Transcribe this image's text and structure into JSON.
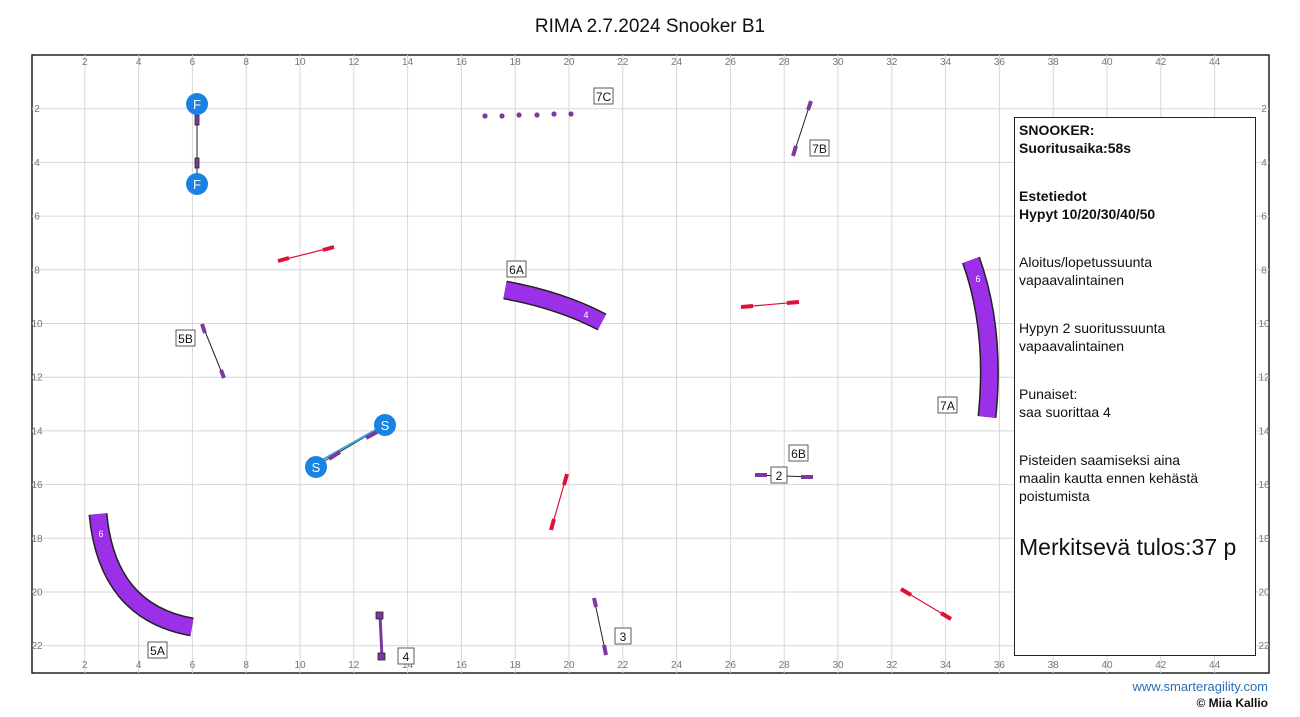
{
  "title": "RIMA 2.7.2024 Snooker B1",
  "footer": {
    "site": "www.smarteragility.com",
    "copyright": "© Miia Kallio"
  },
  "grid": {
    "x_ticks": [
      2,
      4,
      6,
      8,
      10,
      12,
      14,
      16,
      18,
      20,
      22,
      24,
      26,
      28,
      30,
      32,
      34,
      36,
      38,
      40,
      42,
      44
    ],
    "y_ticks": [
      2,
      4,
      6,
      8,
      10,
      12,
      14,
      16,
      18,
      20,
      22
    ]
  },
  "info": {
    "line1": "SNOOKER:",
    "line2": "Suoritusaika:58s",
    "line3": "Estetiedot",
    "line4": "Hypyt 10/20/30/40/50",
    "line5": "Aloitus/lopetussuunta",
    "line6": "vapaavalintainen",
    "line7": "Hypyn 2 suoritussuunta",
    "line8": "vapaavalintainen",
    "line9": "Punaiset:",
    "line10": "saa suorittaa 4",
    "line11": "Pisteiden saamiseksi aina",
    "line12": "maalin kautta ennen kehästä",
    "line13": "poistumista",
    "result": "Merkitsevä tulos:37 p"
  },
  "colors": {
    "tunnel": "#9b30e8",
    "red_jump": "#e0103a",
    "point": "#1a82e2",
    "jump": "#7b3aa0"
  },
  "labels": {
    "l7c": "7C",
    "l7b": "7B",
    "l6a": "6A",
    "l5b": "5B",
    "l7a": "7A",
    "l6b": "6B",
    "l2": "2",
    "l3": "3",
    "l4": "4",
    "l5a": "5A"
  },
  "tunnel_numbers": {
    "t6a": "4",
    "t7a": "6",
    "t5a": "6"
  },
  "points": {
    "finish": "F",
    "start": "S"
  }
}
